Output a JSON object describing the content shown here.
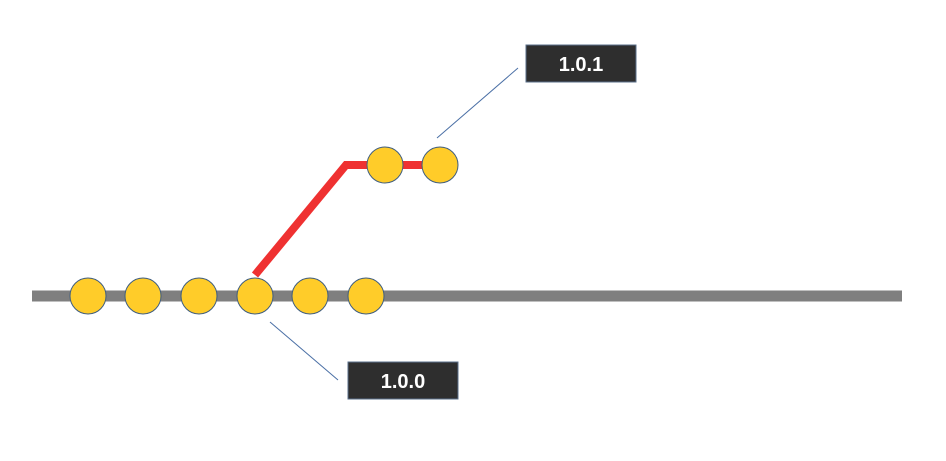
{
  "colors": {
    "main_line": "#7f7f7f",
    "branch_line": "#ef3131",
    "node_fill": "#ffcc29",
    "node_stroke": "#3e5d80",
    "leader_line": "#4a6fa5",
    "tag_fill": "#2e2e2e",
    "tag_text": "#ffffff"
  },
  "main": {
    "node_count": 6
  },
  "branch": {
    "node_count": 2
  },
  "tags": {
    "release_main": "1.0.0",
    "release_branch": "1.0.1"
  }
}
